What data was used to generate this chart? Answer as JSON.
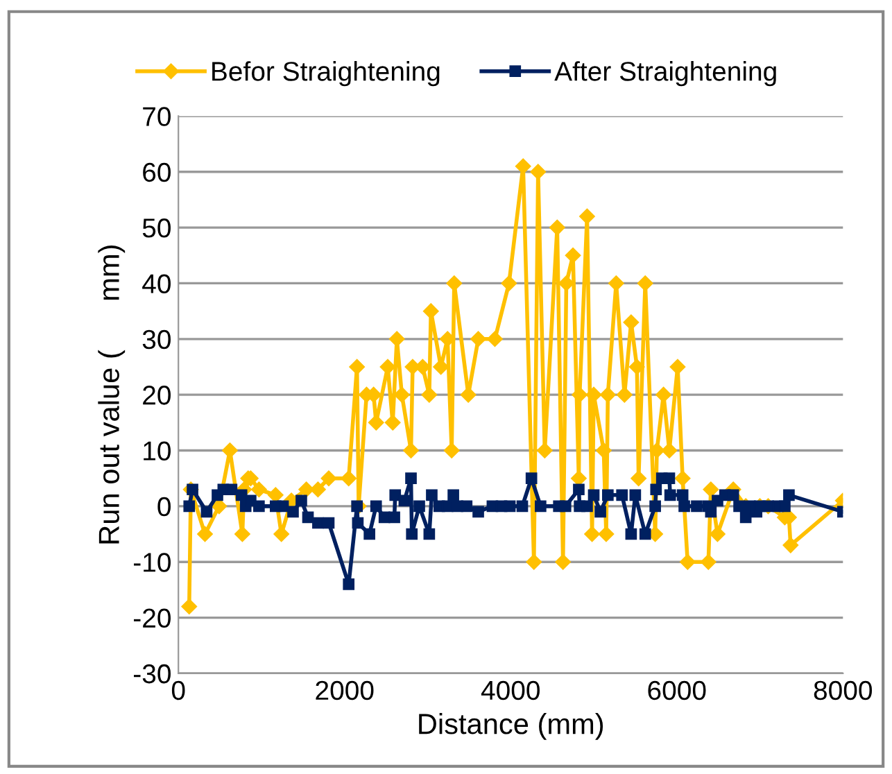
{
  "chart_data": {
    "type": "line",
    "xlabel": "Distance (mm)",
    "ylabel": "Run out value (      mm)",
    "xlim": [
      0,
      8000
    ],
    "xticks": [
      0,
      2000,
      4000,
      6000,
      8000
    ],
    "ylim": [
      -30,
      70
    ],
    "yticks": [
      -30,
      -20,
      -10,
      0,
      10,
      20,
      30,
      40,
      50,
      60,
      70
    ],
    "grid": "y",
    "legend": "top",
    "line_style": "solid",
    "series": [
      {
        "name": "Befor Straightening",
        "color": "#ffc000",
        "marker": "diamond",
        "x": [
          130,
          150,
          320,
          490,
          620,
          770,
          790,
          840,
          870,
          970,
          1170,
          1240,
          1360,
          1540,
          1680,
          1810,
          2050,
          2150,
          2170,
          2265,
          2350,
          2380,
          2520,
          2580,
          2630,
          2690,
          2800,
          2820,
          2940,
          3020,
          3040,
          3160,
          3240,
          3290,
          3320,
          3490,
          3610,
          3810,
          3980,
          4150,
          4280,
          4330,
          4410,
          4560,
          4630,
          4670,
          4750,
          4820,
          4830,
          4920,
          4980,
          5000,
          5120,
          5150,
          5170,
          5270,
          5370,
          5450,
          5520,
          5540,
          5620,
          5740,
          5760,
          5840,
          5910,
          6010,
          6070,
          6130,
          6380,
          6410,
          6490,
          6680,
          6830,
          7000,
          7100,
          7300,
          7350,
          7370,
          8000
        ],
        "values": [
          -18,
          3,
          -5,
          0,
          10,
          -5,
          3,
          5,
          5,
          3,
          2,
          -5,
          1,
          3,
          3,
          5,
          5,
          25,
          0,
          20,
          20,
          15,
          25,
          15,
          30,
          20,
          10,
          25,
          25,
          20,
          35,
          25,
          30,
          10,
          40,
          20,
          30,
          30,
          40,
          61,
          -10,
          60,
          10,
          50,
          -10,
          40,
          45,
          5,
          20,
          52,
          -5,
          20,
          10,
          -5,
          20,
          40,
          20,
          33,
          25,
          5,
          40,
          -5,
          10,
          20,
          10,
          25,
          5,
          -10,
          -10,
          3,
          -5,
          3,
          0,
          0,
          0,
          -2,
          -2,
          -7,
          1
        ]
      },
      {
        "name": "After Straightening",
        "color": "#002060",
        "marker": "square",
        "x": [
          130,
          170,
          340,
          470,
          540,
          640,
          760,
          810,
          870,
          970,
          1170,
          1260,
          1380,
          1480,
          1560,
          1680,
          1810,
          2050,
          2150,
          2160,
          2300,
          2380,
          2480,
          2600,
          2610,
          2720,
          2800,
          2810,
          2900,
          3020,
          3050,
          3140,
          3240,
          3310,
          3360,
          3470,
          3610,
          3780,
          3890,
          3990,
          4140,
          4250,
          4360,
          4580,
          4660,
          4820,
          4830,
          4920,
          5000,
          5080,
          5170,
          5340,
          5450,
          5500,
          5620,
          5740,
          5750,
          5820,
          5910,
          5920,
          6070,
          6090,
          6240,
          6380,
          6410,
          6490,
          6580,
          6680,
          6750,
          6830,
          6880,
          6960,
          7000,
          7100,
          7220,
          7300,
          7350,
          8000
        ],
        "values": [
          0,
          3,
          -1,
          2,
          3,
          3,
          2,
          0,
          1,
          0,
          0,
          0,
          -1,
          1,
          -2,
          -3,
          -3,
          -14,
          0,
          -3,
          -5,
          0,
          -2,
          -2,
          2,
          1,
          5,
          -5,
          0,
          -5,
          2,
          0,
          0,
          2,
          0,
          0,
          -1,
          0,
          0,
          0,
          0,
          5,
          0,
          0,
          0,
          3,
          0,
          0,
          2,
          -1,
          2,
          2,
          -5,
          2,
          -5,
          0,
          3,
          5,
          5,
          2,
          2,
          0,
          0,
          0,
          -1,
          1,
          2,
          2,
          0,
          -2,
          0,
          -1,
          0,
          0,
          0,
          0,
          2,
          -1
        ]
      }
    ]
  }
}
